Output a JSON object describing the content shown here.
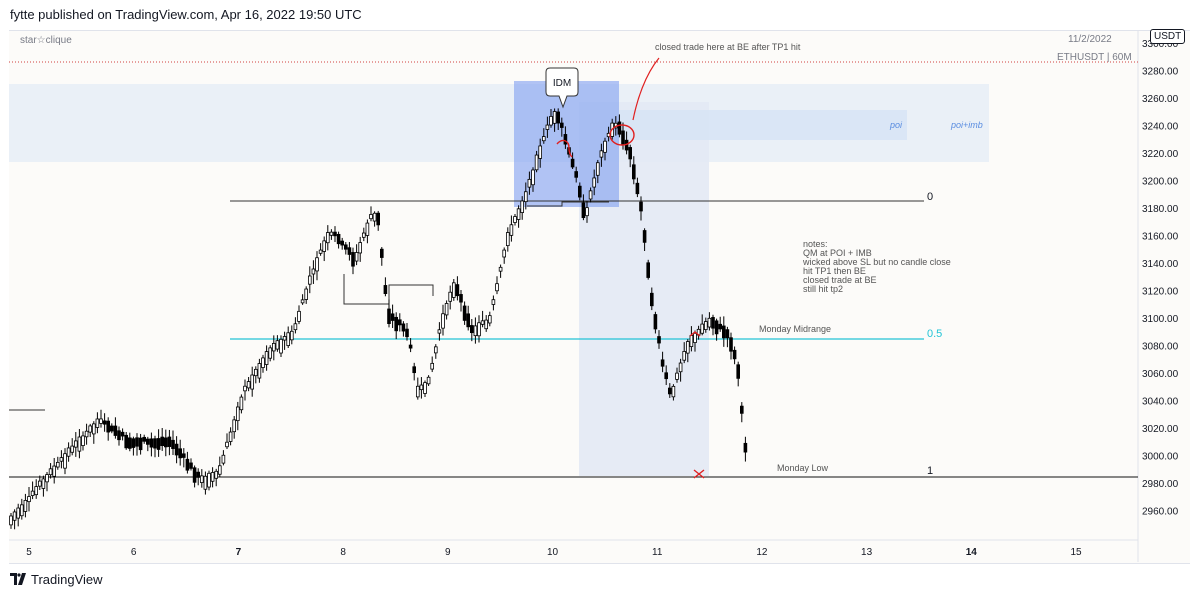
{
  "header": {
    "publisher_line": "fytte published on TradingView.com, Apr 16, 2022 19:50 UTC"
  },
  "chart": {
    "watermark": "star☆clique",
    "symbol_info": "ETHUSDT | 60M",
    "date_stamp": "11/2/2022",
    "currency_badge": "USDT",
    "price_axis_labels": [
      "3300.00",
      "3280.00",
      "3260.00",
      "3240.00",
      "3220.00",
      "3200.00",
      "3180.00",
      "3160.00",
      "3140.00",
      "3120.00",
      "3100.00",
      "3080.00",
      "3060.00",
      "3040.00",
      "3020.00",
      "3000.00",
      "2980.00",
      "2960.00"
    ],
    "time_axis_labels": [
      "5",
      "6",
      "7",
      "8",
      "9",
      "10",
      "11",
      "12",
      "13",
      "14",
      "15"
    ],
    "annotations": {
      "idm": "IDM",
      "poi": "poi",
      "poi_imb": "poi+imb",
      "fib_0": "0",
      "fib_05": "0.5",
      "fib_1": "1",
      "monday_midrange": "Monday Midrange",
      "monday_low": "Monday Low",
      "closed_trade": "closed trade here at BE after TP1 hit"
    },
    "notes": [
      "notes:",
      "QM at POI + IMB",
      "wicked above SL but no candle close",
      "hit TP1 then BE",
      "closed trade at BE",
      "still hit tp2"
    ],
    "colors": {
      "up_candle": "#ffffff",
      "down_candle": "#000000",
      "midrange": "#22c4d6",
      "zone_poi": "#dbe7f6",
      "zone_idm": "#8aa8f0",
      "zone_trade": "#e3e9f4",
      "marker_red": "#e02020"
    }
  },
  "footer": {
    "brand": "TradingView"
  }
}
